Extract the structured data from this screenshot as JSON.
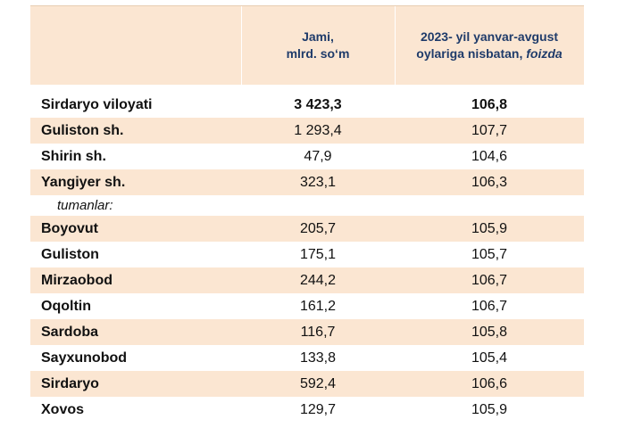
{
  "header": {
    "col2_line1": "Jami,",
    "col2_line2": "mlrd. so‘m",
    "col3_line1": "2023- yil yanvar-avgust",
    "col3_line2_plain": "oylariga nisbatan, ",
    "col3_line2_italic": "foizda"
  },
  "colors": {
    "shade": "#fbe6d2",
    "header_text": "#1f3b6a"
  },
  "rows": [
    {
      "name": "Sirdaryo viloyati",
      "v1": "3 423,3",
      "v2": "106,8"
    },
    {
      "name": "Guliston  sh.",
      "v1": "1 293,4",
      "v2": "107,7"
    },
    {
      "name": "Shirin sh.",
      "v1": "47,9",
      "v2": "104,6"
    },
    {
      "name": "Yangiyer sh.",
      "v1": "323,1",
      "v2": "106,3"
    },
    {
      "name": "tumanlar:",
      "v1": "",
      "v2": ""
    },
    {
      "name": "Boyovut",
      "v1": "205,7",
      "v2": "105,9"
    },
    {
      "name": "Guliston",
      "v1": "175,1",
      "v2": "105,7"
    },
    {
      "name": "Mirzaobod",
      "v1": "244,2",
      "v2": "106,7"
    },
    {
      "name": "Oqoltin",
      "v1": "161,2",
      "v2": "106,7"
    },
    {
      "name": "Sardoba",
      "v1": "116,7",
      "v2": "105,8"
    },
    {
      "name": "Sayxunobod",
      "v1": "133,8",
      "v2": "105,4"
    },
    {
      "name": "Sirdaryo",
      "v1": "592,4",
      "v2": "106,6"
    },
    {
      "name": "Xovos",
      "v1": "129,7",
      "v2": "105,9"
    }
  ]
}
